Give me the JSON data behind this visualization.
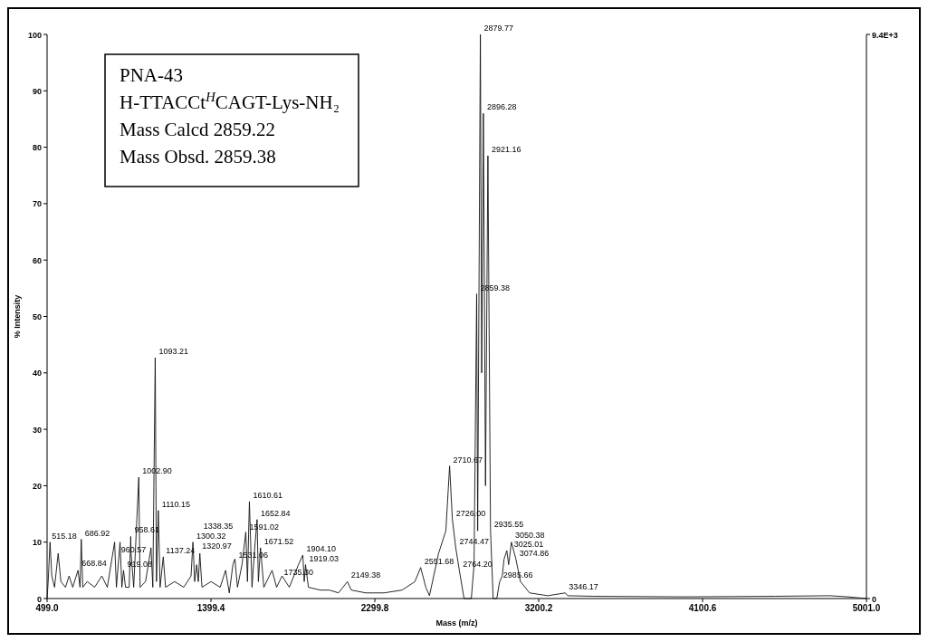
{
  "chart_data": {
    "type": "line",
    "xlabel": "Mass (m/z)",
    "ylabel": "% Intensity",
    "xlim": [
      499,
      5001
    ],
    "xticks": [
      {
        "value": 499,
        "label": "499.0"
      },
      {
        "value": 1399.4,
        "label": "1399.4"
      },
      {
        "value": 2299.8,
        "label": "2299.8"
      },
      {
        "value": 3200.2,
        "label": "3200.2"
      },
      {
        "value": 4100.6,
        "label": "4100.6"
      },
      {
        "value": 5001,
        "label": "5001.0"
      }
    ],
    "ylim": [
      0,
      100
    ],
    "yticks": [
      0,
      10,
      20,
      30,
      40,
      50,
      60,
      70,
      80,
      90,
      100
    ],
    "y2lim": [
      0,
      9400
    ],
    "y2ticks": [
      0,
      {
        "value": 9400,
        "label": "9.4E+3"
      }
    ],
    "grid": false,
    "marker": "none",
    "line_style": "solid",
    "series": [
      {
        "color": "#111111",
        "x": [
          499,
          505,
          515.18,
          525,
          540,
          560,
          575,
          600,
          620,
          640,
          668.84,
          680,
          686.92,
          695,
          720,
          760,
          800,
          830,
          870,
          880,
          900,
          910,
          919.08,
          930,
          950,
          958.61,
          960.57,
          975,
          1002.9,
          1010,
          1040,
          1070,
          1080,
          1093.21,
          1100,
          1110.15,
          1120,
          1137.24,
          1150,
          1200,
          1250,
          1290,
          1300.32,
          1310,
          1320.97,
          1330,
          1338.35,
          1350,
          1400,
          1450,
          1480,
          1500,
          1520,
          1531.06,
          1545,
          1570,
          1591.02,
          1600,
          1610.61,
          1625,
          1640,
          1652.84,
          1660,
          1671.52,
          1690,
          1735.3,
          1760,
          1790,
          1830,
          1880,
          1904.1,
          1912,
          1919.03,
          1935,
          2000,
          2050,
          2100,
          2149.38,
          2170,
          2250,
          2350,
          2450,
          2520,
          2551.68,
          2580,
          2600,
          2650,
          2690,
          2710.67,
          2726,
          2744.47,
          2764.2,
          2790,
          2830,
          2845,
          2859.38,
          2865,
          2879.77,
          2887,
          2896.28,
          2908,
          2921.16,
          2935.55,
          2950,
          2970,
          2985.66,
          3000,
          3010,
          3025.01,
          3035,
          3050.38,
          3074.86,
          3100,
          3150,
          3250,
          3346.17,
          3360,
          3500,
          4000,
          4500,
          4800,
          4900,
          5001
        ],
        "values": [
          0,
          3,
          10,
          4,
          2,
          8,
          3,
          2,
          4,
          2,
          5,
          2,
          10.5,
          2,
          3,
          2,
          4,
          2,
          10,
          2,
          10,
          2,
          5,
          2,
          2,
          11,
          8,
          2,
          21.5,
          2,
          3,
          9,
          2,
          42.7,
          3,
          15.6,
          2,
          7.4,
          2,
          3,
          2,
          4,
          10,
          3,
          6,
          3,
          8,
          2,
          3,
          2,
          5,
          1,
          6,
          7,
          2,
          6,
          11.8,
          3,
          17.2,
          2,
          9,
          14,
          3,
          9,
          2,
          5,
          2,
          4,
          2,
          6,
          7.7,
          3,
          6,
          2,
          1.5,
          1.5,
          1,
          3,
          1.5,
          1,
          1,
          1.5,
          3,
          5.5,
          2,
          0.5,
          8,
          12,
          23.5,
          14,
          9,
          5,
          0,
          0,
          6,
          54,
          12,
          100,
          40,
          86,
          20,
          78.5,
          12,
          0,
          0,
          3,
          4,
          7,
          8.5,
          6,
          10,
          7,
          3,
          1,
          0.5,
          1,
          0.5,
          0.4,
          0.3,
          0.4,
          0.5,
          0.3,
          0
        ]
      }
    ],
    "annotations": [
      "PNA-43",
      "H-TTACCt$^{H}$CAGT-Lys-NH₂",
      "Mass Calcd 2859.22",
      "Mass Obsd.  2859.38",
      {
        "text": "515.18",
        "x": 515.18,
        "y": 10
      },
      {
        "text": "668.84",
        "x": 668.84,
        "y": 5
      },
      {
        "text": "686.92",
        "x": 686.92,
        "y": 10.5
      },
      {
        "text": "919.08",
        "x": 919.08,
        "y": 5
      },
      {
        "text": "958.61",
        "x": 958.61,
        "y": 11
      },
      {
        "text": "960.57",
        "x": 960.57,
        "y": 8
      },
      {
        "text": "1002.90",
        "x": 1002.9,
        "y": 21.5
      },
      {
        "text": "1093.21",
        "x": 1093.21,
        "y": 42.7
      },
      {
        "text": "1110.15",
        "x": 1110.15,
        "y": 15.6
      },
      {
        "text": "1137.24",
        "x": 1137.24,
        "y": 7.4
      },
      {
        "text": "1300.32",
        "x": 1300.32,
        "y": 10
      },
      {
        "text": "1320.97",
        "x": 1320.97,
        "y": 6
      },
      {
        "text": "1338.35",
        "x": 1338.35,
        "y": 8
      },
      {
        "text": "1531.06",
        "x": 1531.06,
        "y": 7
      },
      {
        "text": "1591.02",
        "x": 1591.02,
        "y": 11.8
      },
      {
        "text": "1610.61",
        "x": 1610.61,
        "y": 17.2
      },
      {
        "text": "1652.84",
        "x": 1652.84,
        "y": 14
      },
      {
        "text": "1671.52",
        "x": 1671.52,
        "y": 9
      },
      {
        "text": "1735.30",
        "x": 1735.3,
        "y": 5
      },
      {
        "text": "1904.10",
        "x": 1904.1,
        "y": 7.7
      },
      {
        "text": "1919.03",
        "x": 1919.03,
        "y": 6
      },
      {
        "text": "2149.38",
        "x": 2149.38,
        "y": 3
      },
      {
        "text": "2551.68",
        "x": 2551.68,
        "y": 5.5
      },
      {
        "text": "2710.67",
        "x": 2710.67,
        "y": 23.5
      },
      {
        "text": "2726.00",
        "x": 2726,
        "y": 14
      },
      {
        "text": "2744.47",
        "x": 2744.47,
        "y": 9
      },
      {
        "text": "2764.20",
        "x": 2764.2,
        "y": 5
      },
      {
        "text": "2859.38",
        "x": 2859.38,
        "y": 54
      },
      {
        "text": "2879.77",
        "x": 2879.77,
        "y": 100
      },
      {
        "text": "2896.28",
        "x": 2896.28,
        "y": 86
      },
      {
        "text": "2921.16",
        "x": 2921.16,
        "y": 78.5
      },
      {
        "text": "2935.55",
        "x": 2935.55,
        "y": 12
      },
      {
        "text": "2985.66",
        "x": 2985.66,
        "y": 3
      },
      {
        "text": "3025.01",
        "x": 3025.01,
        "y": 8.5
      },
      {
        "text": "3050.38",
        "x": 3050.38,
        "y": 10
      },
      {
        "text": "3074.86",
        "x": 3074.86,
        "y": 7
      },
      {
        "text": "3346.17",
        "x": 3346.17,
        "y": 1
      }
    ]
  }
}
